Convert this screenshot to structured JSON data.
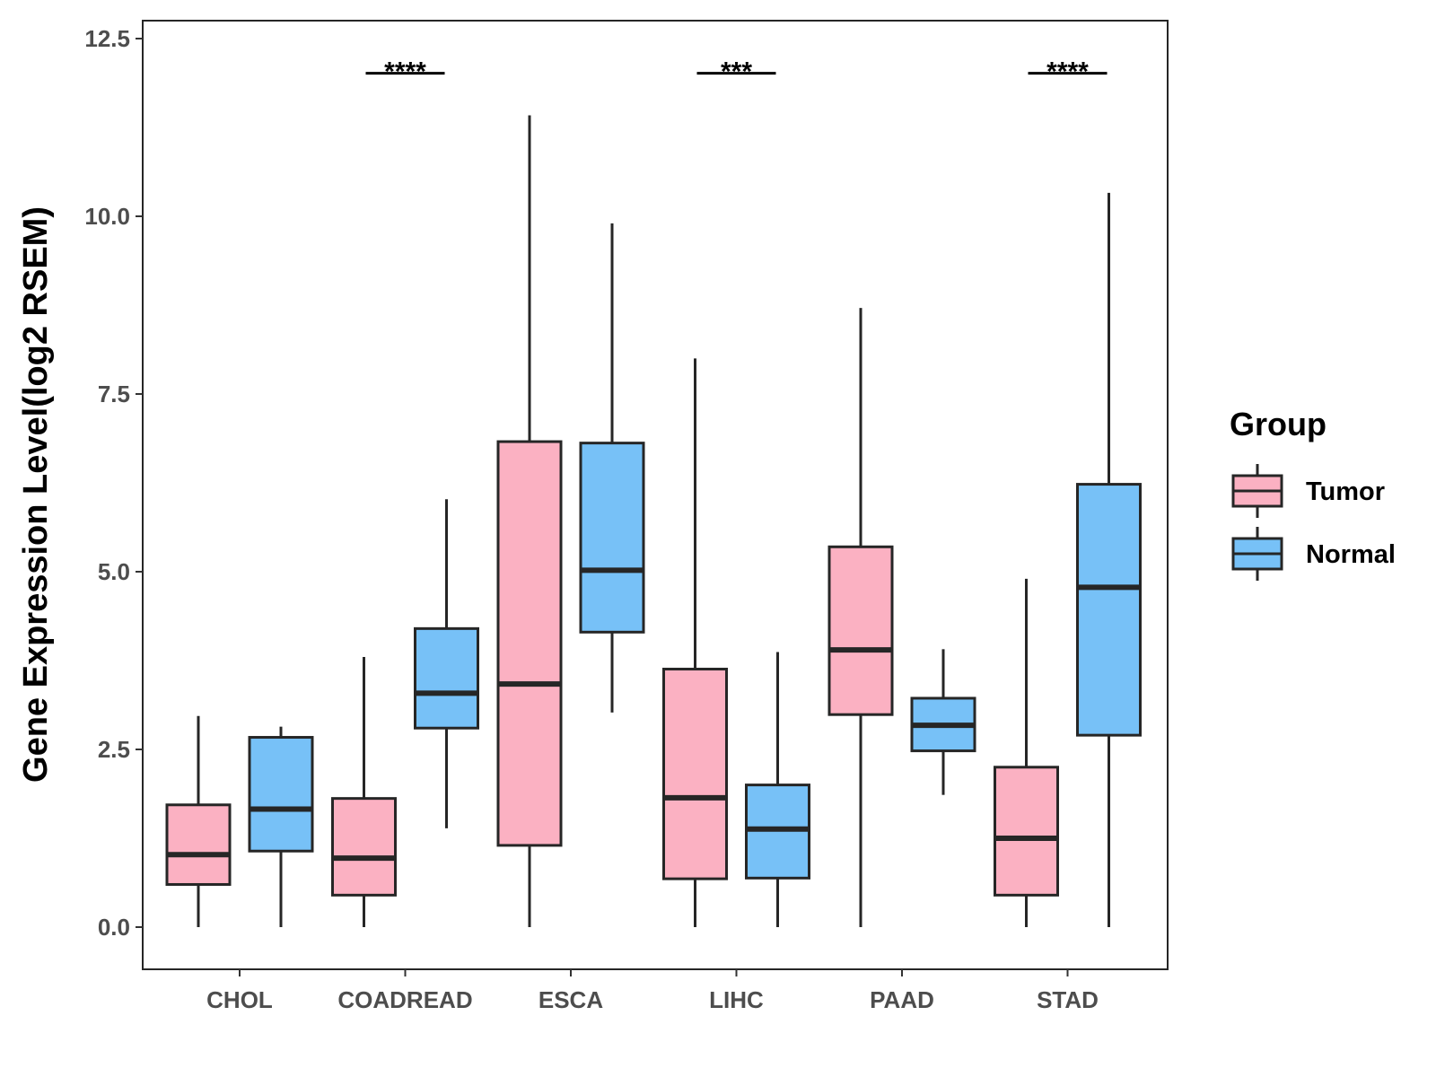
{
  "chart_data": {
    "type": "boxplot",
    "ylabel": "Gene Expression Level(log2 RSEM)",
    "xlabel": "",
    "ylim": [
      -0.6,
      12.75
    ],
    "yticks": [
      0.0,
      2.5,
      5.0,
      7.5,
      10.0,
      12.5
    ],
    "ytick_labels": [
      "0.0",
      "2.5",
      "5.0",
      "7.5",
      "10.0",
      "12.5"
    ],
    "grid": false,
    "legend": {
      "title": "Group",
      "position": "right",
      "entries": [
        "Tumor",
        "Normal"
      ]
    },
    "colors": {
      "Tumor": "#fbb1c2",
      "Normal": "#77c1f7",
      "stroke": "#262626"
    },
    "categories": [
      "CHOL",
      "COADREAD",
      "ESCA",
      "LIHC",
      "PAAD",
      "STAD"
    ],
    "series": [
      {
        "name": "Tumor",
        "boxes": [
          {
            "min": 0.0,
            "q1": 0.6,
            "median": 1.02,
            "q3": 1.72,
            "max": 2.97
          },
          {
            "min": 0.0,
            "q1": 0.45,
            "median": 0.97,
            "q3": 1.81,
            "max": 3.8
          },
          {
            "min": 0.0,
            "q1": 1.15,
            "median": 3.42,
            "q3": 6.83,
            "max": 11.42
          },
          {
            "min": 0.0,
            "q1": 0.68,
            "median": 1.82,
            "q3": 3.63,
            "max": 8.0
          },
          {
            "min": 0.0,
            "q1": 2.99,
            "median": 3.9,
            "q3": 5.35,
            "max": 8.71
          },
          {
            "min": 0.0,
            "q1": 0.45,
            "median": 1.25,
            "q3": 2.25,
            "max": 4.9
          }
        ]
      },
      {
        "name": "Normal",
        "boxes": [
          {
            "min": 0.0,
            "q1": 1.07,
            "median": 1.66,
            "q3": 2.67,
            "max": 2.82
          },
          {
            "min": 1.39,
            "q1": 2.8,
            "median": 3.29,
            "q3": 4.2,
            "max": 6.02
          },
          {
            "min": 3.02,
            "q1": 4.15,
            "median": 5.02,
            "q3": 6.81,
            "max": 9.9
          },
          {
            "min": 0.0,
            "q1": 0.69,
            "median": 1.38,
            "q3": 2.0,
            "max": 3.87
          },
          {
            "min": 1.86,
            "q1": 2.48,
            "median": 2.84,
            "q3": 3.22,
            "max": 3.91
          },
          {
            "min": 0.0,
            "q1": 2.7,
            "median": 4.78,
            "q3": 6.23,
            "max": 10.33
          }
        ]
      }
    ],
    "annotations": [
      {
        "category": "COADREAD",
        "label": "****",
        "y": 12.0
      },
      {
        "category": "LIHC",
        "label": "***",
        "y": 12.0
      },
      {
        "category": "STAD",
        "label": "****",
        "y": 12.0
      }
    ]
  }
}
